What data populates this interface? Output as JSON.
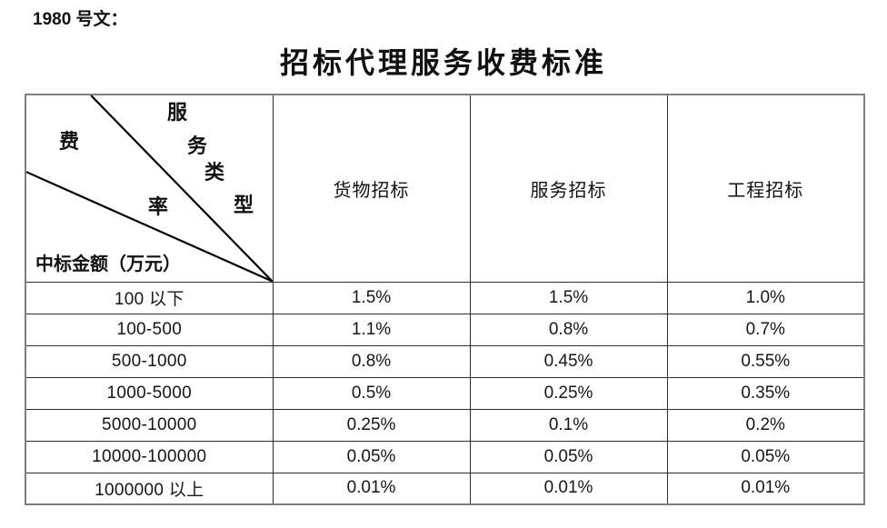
{
  "document": {
    "label": "1980 号文：",
    "title": "招标代理服务收费标准"
  },
  "table": {
    "corner": {
      "service_type_chars": [
        "服",
        "务",
        "类",
        "型"
      ],
      "rate_chars": [
        "费",
        "率"
      ],
      "amount_label": "中标金额（万元）"
    },
    "columns": [
      "货物招标",
      "服务招标",
      "工程招标"
    ],
    "rows": [
      {
        "range": "100 以下",
        "values": [
          "1.5%",
          "1.5%",
          "1.0%"
        ]
      },
      {
        "range": "100-500",
        "values": [
          "1.1%",
          "0.8%",
          "0.7%"
        ]
      },
      {
        "range": "500-1000",
        "values": [
          "0.8%",
          "0.45%",
          "0.55%"
        ]
      },
      {
        "range": "1000-5000",
        "values": [
          "0.5%",
          "0.25%",
          "0.35%"
        ]
      },
      {
        "range": "5000-10000",
        "values": [
          "0.25%",
          "0.1%",
          "0.2%"
        ]
      },
      {
        "range": "10000-100000",
        "values": [
          "0.05%",
          "0.05%",
          "0.05%"
        ]
      },
      {
        "range": "1000000 以上",
        "values": [
          "0.01%",
          "0.01%",
          "0.01%"
        ]
      }
    ]
  },
  "colors": {
    "text": "#111111",
    "outer_border": "#7f7f7f",
    "inner_border": "#2e2e2e",
    "diagonal_line": "#000000",
    "background": "#ffffff"
  }
}
